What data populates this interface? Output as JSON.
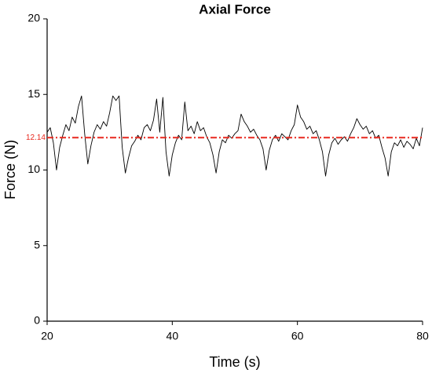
{
  "chart_data": {
    "type": "line",
    "title": "Axial Force",
    "xlabel": "Time (s)",
    "ylabel": "Force (N)",
    "x": [
      20,
      20.5,
      21,
      21.5,
      22,
      22.5,
      23,
      23.5,
      24,
      24.5,
      25,
      25.5,
      26,
      26.5,
      27,
      27.5,
      28,
      28.5,
      29,
      29.5,
      30,
      30.5,
      31,
      31.5,
      32,
      32.5,
      33,
      33.5,
      34,
      34.5,
      35,
      35.5,
      36,
      36.5,
      37,
      37.5,
      38,
      38.5,
      39,
      39.5,
      40,
      40.5,
      41,
      41.5,
      42,
      42.5,
      43,
      43.5,
      44,
      44.5,
      45,
      45.5,
      46,
      46.5,
      47,
      47.5,
      48,
      48.5,
      49,
      49.5,
      50,
      50.5,
      51,
      51.5,
      52,
      52.5,
      53,
      53.5,
      54,
      54.5,
      55,
      55.5,
      56,
      56.5,
      57,
      57.5,
      58,
      58.5,
      59,
      59.5,
      60,
      60.5,
      61,
      61.5,
      62,
      62.5,
      63,
      63.5,
      64,
      64.5,
      65,
      65.5,
      66,
      66.5,
      67,
      67.5,
      68,
      68.5,
      69,
      69.5,
      70,
      70.5,
      71,
      71.5,
      72,
      72.5,
      73,
      73.5,
      74,
      74.5,
      75,
      75.5,
      76,
      76.5,
      77,
      77.5,
      78,
      78.5,
      79,
      79.5,
      80
    ],
    "series": [
      {
        "color": "#000000",
        "values": [
          12.5,
          12.8,
          11.8,
          10.0,
          11.5,
          12.3,
          13.0,
          12.6,
          13.5,
          13.1,
          14.2,
          14.9,
          12.4,
          10.4,
          11.6,
          12.5,
          13.0,
          12.7,
          13.2,
          12.9,
          13.8,
          14.9,
          14.6,
          14.9,
          11.5,
          9.8,
          10.8,
          11.6,
          11.9,
          12.3,
          12.0,
          12.8,
          13.0,
          12.6,
          13.3,
          14.7,
          12.5,
          14.8,
          11.2,
          9.6,
          11.0,
          11.8,
          12.3,
          12.0,
          14.5,
          12.6,
          12.9,
          12.4,
          13.2,
          12.6,
          12.8,
          12.2,
          11.8,
          11.0,
          9.8,
          11.2,
          12.0,
          11.8,
          12.3,
          12.1,
          12.4,
          12.6,
          13.7,
          13.2,
          12.9,
          12.5,
          12.7,
          12.3,
          12.0,
          11.4,
          10.0,
          11.3,
          12.0,
          12.3,
          11.9,
          12.4,
          12.2,
          12.0,
          12.6,
          13.0,
          14.3,
          13.5,
          13.2,
          12.7,
          12.9,
          12.4,
          12.6,
          12.0,
          11.2,
          9.6,
          11.0,
          11.8,
          12.1,
          11.7,
          12.0,
          12.2,
          11.9,
          12.4,
          12.8,
          13.4,
          13.0,
          12.7,
          12.9,
          12.4,
          12.6,
          12.1,
          12.3,
          11.5,
          10.8,
          9.6,
          11.2,
          11.8,
          11.6,
          12.0,
          11.5,
          11.9,
          11.7,
          11.4,
          12.1,
          11.6,
          12.8
        ]
      }
    ],
    "hline": {
      "value": 12.14,
      "color": "#e8281e"
    },
    "xlim": [
      20,
      80
    ],
    "xticks": [
      20,
      40,
      60,
      80
    ],
    "ylim": [
      0,
      20
    ],
    "yticks": [
      0,
      5,
      10,
      15,
      20
    ]
  }
}
